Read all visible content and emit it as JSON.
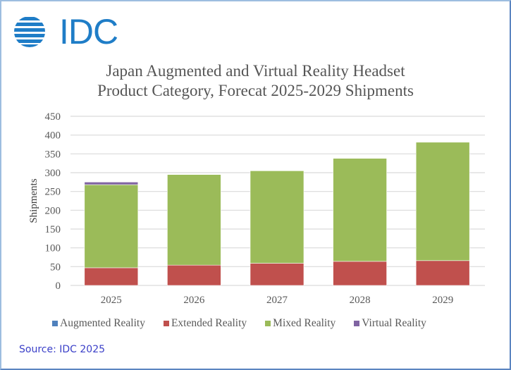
{
  "logo": {
    "text": "IDC",
    "color": "#1f7dc7"
  },
  "source": "Source: IDC 2025",
  "chart_data": {
    "type": "bar",
    "stacked": true,
    "title": "Japan Augmented and Virtual Reality Headset Product Category, Forecat 2025-2029 Shipments",
    "title_lines": [
      "Japan Augmented and Virtual Reality Headset",
      "Product Category, Forecat 2025-2029 Shipments"
    ],
    "xlabel": "",
    "ylabel": "Shipments",
    "ylim": [
      0,
      450
    ],
    "yticks": [
      0,
      50,
      100,
      150,
      200,
      250,
      300,
      350,
      400,
      450
    ],
    "grid": true,
    "legend_position": "bottom",
    "categories": [
      "2025",
      "2026",
      "2027",
      "2028",
      "2029"
    ],
    "series": [
      {
        "name": "Augmented Reality",
        "color": "#4f81bd",
        "values": [
          0,
          0,
          0,
          0,
          0
        ]
      },
      {
        "name": "Extended Reality",
        "color": "#c0504d",
        "values": [
          47,
          54,
          59,
          64,
          66
        ]
      },
      {
        "name": "Mixed Reality",
        "color": "#9bbb59",
        "values": [
          221,
          241,
          246,
          274,
          315
        ]
      },
      {
        "name": "Virtual Reality",
        "color": "#8064a2",
        "values": [
          7,
          0,
          0,
          0,
          0
        ]
      }
    ]
  }
}
